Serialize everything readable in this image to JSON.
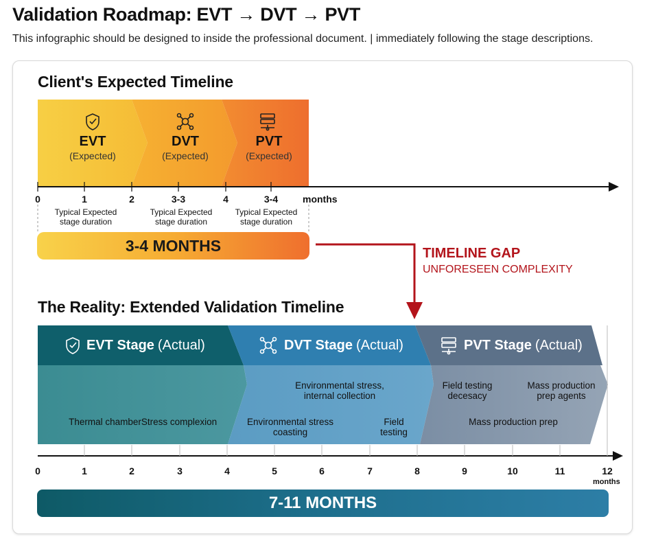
{
  "header": {
    "title": "Validation Roadmap: EVT → DVT → PVT",
    "subtitle": "This infographic should be designed to inside the professional document. | immediately following the stage descriptions."
  },
  "expected": {
    "heading": "Client's Expected Timeline",
    "stages": [
      {
        "name": "EVT",
        "sub": "(Expected)",
        "icon": "shield-check-icon",
        "color": "#f6c53a"
      },
      {
        "name": "DVT",
        "sub": "(Expected)",
        "icon": "network-icon",
        "color": "#f5a52e"
      },
      {
        "name": "PVT",
        "sub": "(Expected)",
        "icon": "server-stack-icon",
        "color": "#f07a2f"
      }
    ],
    "ticks": [
      "0",
      "1",
      "2",
      "3-3",
      "4",
      "3-4"
    ],
    "unit": "months",
    "durations": [
      "Typical Expected stage duration",
      "Typical Expected stage duration",
      "Typical Expected stage duration"
    ],
    "total": "3-4 MONTHS"
  },
  "gap": {
    "title": "TIMELINE GAP",
    "subtitle": "UNFORESEEN COMPLEXITY",
    "color": "#b3141b"
  },
  "reality": {
    "heading": "The Reality: Extended Validation Timeline",
    "stages": [
      {
        "name": "EVT Stage",
        "sub": "(Actual)",
        "icon": "shield-check-icon",
        "color": "#0f5f6b"
      },
      {
        "name": "DVT Stage",
        "sub": "(Actual)",
        "icon": "network-icon",
        "color": "#2f7fb0"
      },
      {
        "name": "PVT Stage",
        "sub": "(Actual)",
        "icon": "server-stack-icon",
        "color": "#5c7189"
      }
    ],
    "activities": [
      "Thermal chamber",
      "Stress complexion",
      "Environmental stress, internal collection",
      "Environmental stress coasting",
      "Field testing",
      "Field testing decesacy",
      "Mass production prep agents",
      "Mass production prep"
    ],
    "ticks": [
      "0",
      "1",
      "2",
      "3",
      "4",
      "5",
      "6",
      "7",
      "8",
      "9",
      "10",
      "11",
      "12"
    ],
    "unit": "months",
    "total": "7-11 MONTHS"
  }
}
